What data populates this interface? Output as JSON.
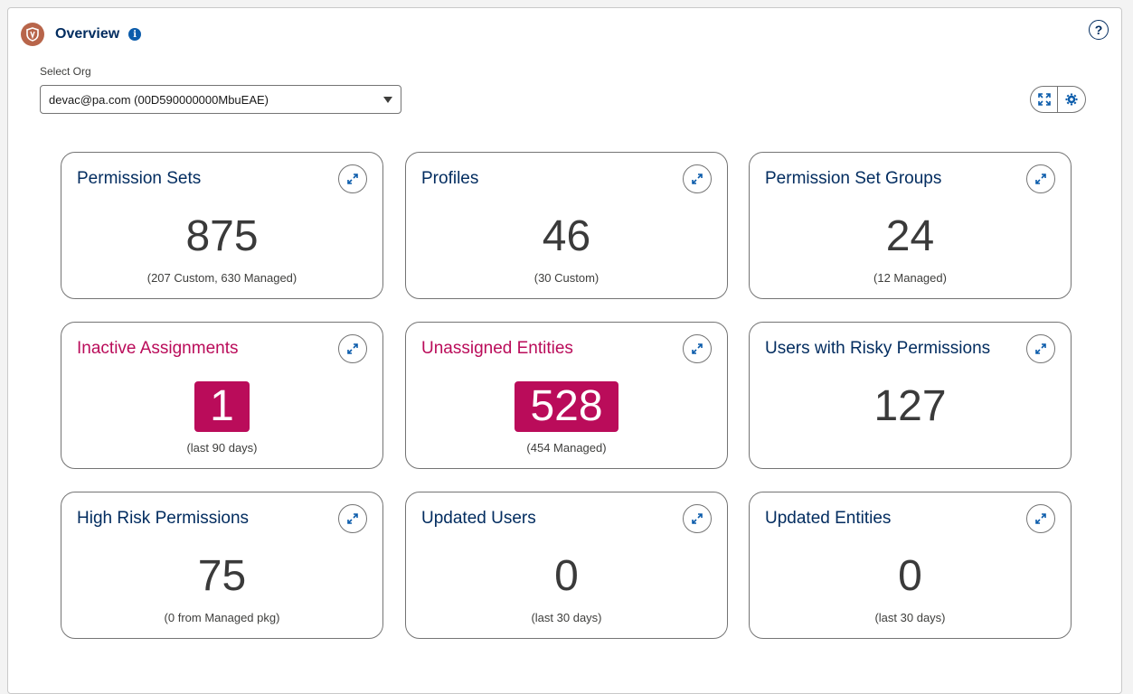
{
  "header": {
    "title": "Overview",
    "info_icon": "info-icon",
    "help_icon": "help-icon",
    "help_glyph": "?"
  },
  "org": {
    "label": "Select Org",
    "selected": "devac@pa.com (00D590000000MbuEAE)"
  },
  "toolbar": {
    "icons": [
      "fullscreen-icon",
      "settings-icon"
    ]
  },
  "colors": {
    "title": "#032d60",
    "alert": "#ba0c5a",
    "accent_icon": "#0b5cab",
    "logo": "#b8654a"
  },
  "cards": [
    {
      "title": "Permission Sets",
      "value": "875",
      "sub": "(207 Custom, 630 Managed)",
      "alert": false
    },
    {
      "title": "Profiles",
      "value": "46",
      "sub": "(30 Custom)",
      "alert": false
    },
    {
      "title": "Permission Set Groups",
      "value": "24",
      "sub": "(12 Managed)",
      "alert": false
    },
    {
      "title": "Inactive Assignments",
      "value": "1",
      "sub": "(last 90 days)",
      "alert": true
    },
    {
      "title": "Unassigned Entities",
      "value": "528",
      "sub": "(454 Managed)",
      "alert": true
    },
    {
      "title": "Users with Risky Permissions",
      "value": "127",
      "sub": "",
      "alert": false
    },
    {
      "title": "High Risk Permissions",
      "value": "75",
      "sub": "(0 from Managed pkg)",
      "alert": false
    },
    {
      "title": "Updated Users",
      "value": "0",
      "sub": "(last 30 days)",
      "alert": false
    },
    {
      "title": "Updated Entities",
      "value": "0",
      "sub": "(last 30 days)",
      "alert": false
    }
  ]
}
